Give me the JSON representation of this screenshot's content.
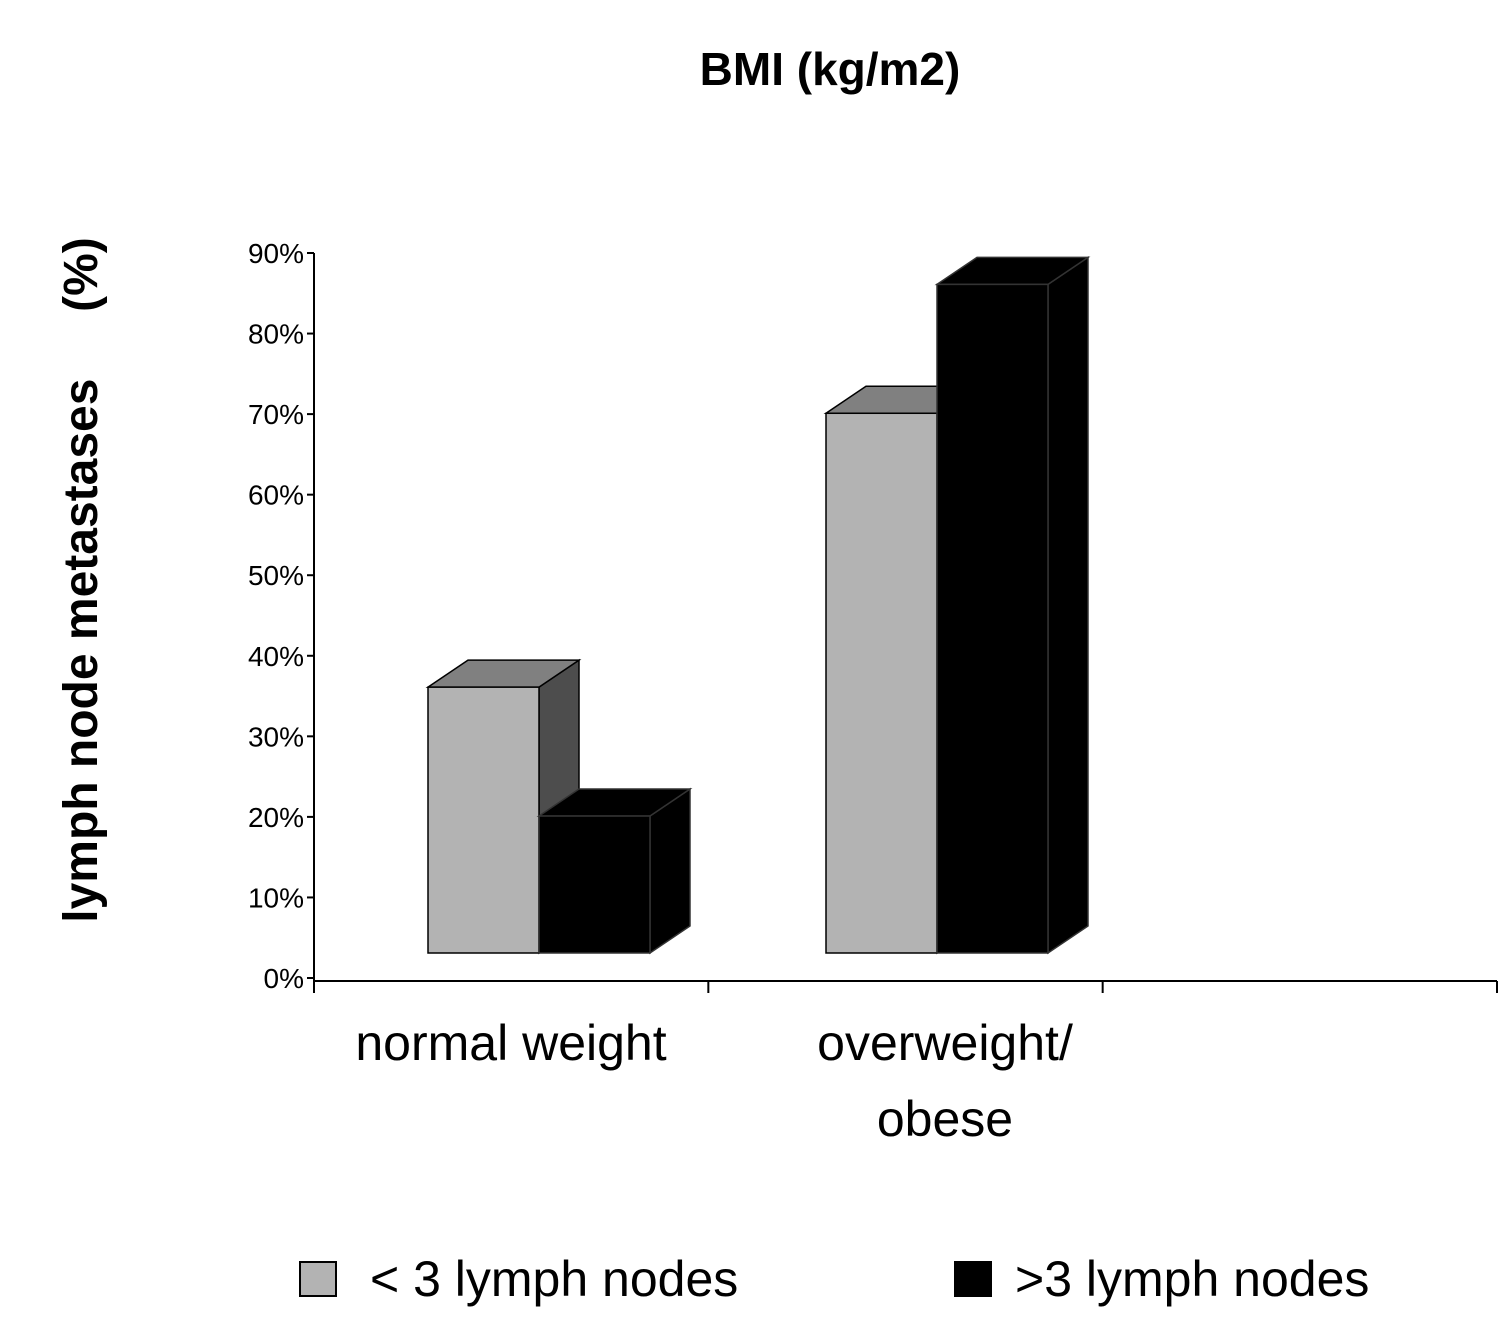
{
  "chart_data": {
    "type": "bar",
    "style": "3d-column",
    "title": "BMI (kg/m2)",
    "ylabel": "lymph node metastases     (%)",
    "xlabel": "",
    "categories": [
      "normal weight",
      "overweight/ obese"
    ],
    "category_lines": [
      [
        "normal weight"
      ],
      [
        "overweight/",
        "obese"
      ]
    ],
    "ylim": [
      0,
      90
    ],
    "yticks": [
      "0%",
      "10%",
      "20%",
      "30%",
      "40%",
      "50%",
      "60%",
      "70%",
      "80%",
      "90%"
    ],
    "grid": false,
    "legend_position": "bottom",
    "series": [
      {
        "name": "< 3 lymph nodes",
        "values": [
          33,
          67
        ],
        "color": "#b3b3b3",
        "top_color": "#808080",
        "side_color": "#4d4d4d"
      },
      {
        "name": ">3 lymph nodes",
        "values": [
          17,
          83
        ],
        "color": "#000000",
        "top_color": "#000000",
        "side_color": "#000000"
      }
    ]
  }
}
